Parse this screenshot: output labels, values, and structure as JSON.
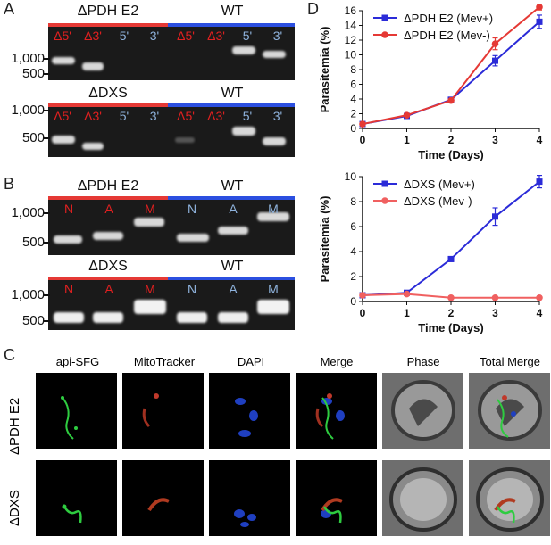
{
  "panels": {
    "a": "A",
    "b": "B",
    "c": "C",
    "d": "D"
  },
  "gelA1": {
    "left_title": "ΔPDH E2",
    "right_title": "WT",
    "lanes": [
      "Δ5'",
      "Δ3'",
      "5'",
      "3'",
      "Δ5'",
      "Δ3'",
      "5'",
      "3'"
    ],
    "markers": [
      "1,000",
      "500"
    ]
  },
  "gelA2": {
    "left_title": "ΔDXS",
    "right_title": "WT",
    "lanes": [
      "Δ5'",
      "Δ3'",
      "5'",
      "3'",
      "Δ5'",
      "Δ3'",
      "5'",
      "3'"
    ],
    "markers": [
      "1,000",
      "500"
    ]
  },
  "gelB1": {
    "left_title": "ΔPDH E2",
    "right_title": "WT",
    "lanes": [
      "N",
      "A",
      "M",
      "N",
      "A",
      "M"
    ],
    "markers": [
      "1,000",
      "500"
    ]
  },
  "gelB2": {
    "left_title": "ΔDXS",
    "right_title": "WT",
    "lanes": [
      "N",
      "A",
      "M",
      "N",
      "A",
      "M"
    ],
    "markers": [
      "1,000",
      "500"
    ]
  },
  "colors": {
    "red": "#e53935",
    "blue": "#2b4fe0"
  },
  "chart_data": [
    {
      "type": "line",
      "ylabel": "Parasitemia (%)",
      "xlabel": "Time (Days)",
      "x": [
        0,
        1,
        2,
        3,
        4
      ],
      "xlim": [
        0,
        4
      ],
      "ylim": [
        0,
        16
      ],
      "yticks": [
        0,
        2,
        4,
        6,
        8,
        10,
        12,
        14,
        16
      ],
      "legend_position": "top-left",
      "series": [
        {
          "name": "ΔPDH E2 (Mev+)",
          "color": "#2b2bd8",
          "marker": "square",
          "values": [
            0.6,
            1.7,
            3.9,
            9.2,
            14.5
          ],
          "errors": [
            0.1,
            0.2,
            0.2,
            0.7,
            0.9
          ]
        },
        {
          "name": "ΔPDH E2 (Mev-)",
          "color": "#e53935",
          "marker": "circle",
          "values": [
            0.6,
            1.8,
            3.8,
            11.5,
            16.5
          ],
          "errors": [
            0.1,
            0.2,
            0.2,
            0.8,
            0.4
          ]
        }
      ]
    },
    {
      "type": "line",
      "ylabel": "Parasitemia (%)",
      "xlabel": "Time (Days)",
      "x": [
        0,
        1,
        2,
        3,
        4
      ],
      "xlim": [
        0,
        4
      ],
      "ylim": [
        0,
        10
      ],
      "yticks": [
        0,
        2,
        4,
        6,
        8,
        10
      ],
      "legend_position": "top-left",
      "series": [
        {
          "name": "ΔDXS (Mev+)",
          "color": "#2b2bd8",
          "marker": "square",
          "values": [
            0.5,
            0.7,
            3.4,
            6.8,
            9.6
          ],
          "errors": [
            0.1,
            0.1,
            0.2,
            0.7,
            0.5
          ]
        },
        {
          "name": "ΔDXS (Mev-)",
          "color": "#f06060",
          "marker": "circle",
          "values": [
            0.5,
            0.6,
            0.3,
            0.3,
            0.3
          ],
          "errors": [
            0.05,
            0.05,
            0.05,
            0.05,
            0.05
          ]
        }
      ]
    }
  ],
  "microscopy": {
    "columns": [
      "api-SFG",
      "MitoTracker",
      "DAPI",
      "Merge",
      "Phase",
      "Total Merge"
    ],
    "rows": [
      "ΔPDH E2",
      "ΔDXS"
    ]
  }
}
